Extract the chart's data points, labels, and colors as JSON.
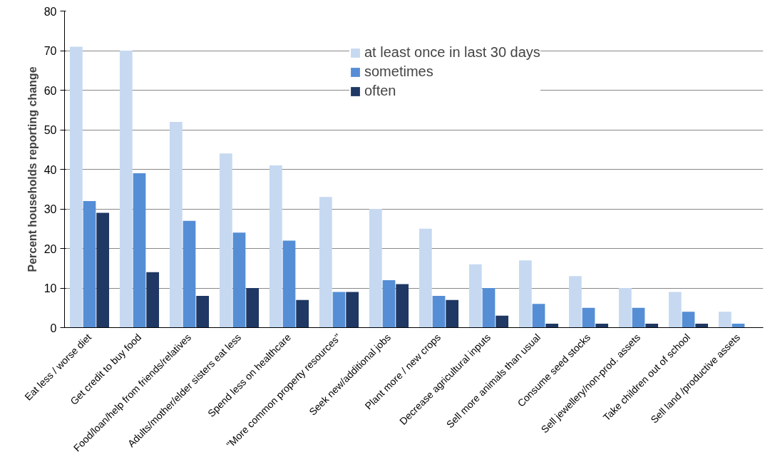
{
  "chart_data": {
    "type": "bar",
    "ylabel": "Percent households reporting change",
    "categories": [
      "Eat less / worse diet",
      "Get credit to buy food",
      "Food/loan/help from friends/relatives",
      "Adults/mother/elder sisters eat less",
      "Spend less on healthcare",
      "\"More common property resources\"",
      "Seek new/additional jobs",
      "Plant more / new crops",
      "Decrease agricultural inputs",
      "Sell more animals than usual",
      "Consume seed stocks",
      "Sell jewellery/non-prod. assets",
      "Take children out of school",
      "Sell land /productive assets"
    ],
    "series": [
      {
        "name": "at least once in last 30 days",
        "color": "#c6d9f1",
        "values": [
          71,
          70,
          52,
          44,
          41,
          33,
          30,
          25,
          16,
          17,
          13,
          10,
          9,
          4
        ]
      },
      {
        "name": "sometimes",
        "color": "#558ed5",
        "values": [
          32,
          39,
          27,
          24,
          22,
          9,
          12,
          8,
          10,
          6,
          5,
          5,
          4,
          1
        ]
      },
      {
        "name": "often",
        "color": "#1f3864",
        "values": [
          29,
          14,
          8,
          10,
          7,
          9,
          11,
          7,
          3,
          1,
          1,
          1,
          1,
          0
        ]
      }
    ],
    "ylim": [
      0,
      80
    ],
    "yticks": [
      0,
      10,
      20,
      30,
      40,
      50,
      60,
      70,
      80
    ],
    "grid": "y",
    "legend": "top"
  }
}
